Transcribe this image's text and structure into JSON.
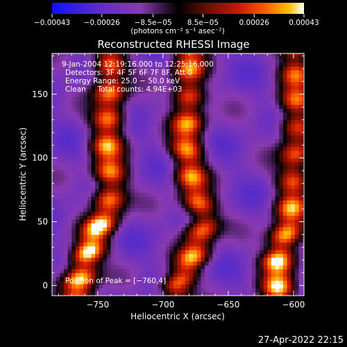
{
  "chart_data": {
    "type": "heatmap",
    "title": "Reconstructed RHESSI Image",
    "xlabel": "Heliocentric X (arcsec)",
    "ylabel": "Heliocentric Y (arcsec)",
    "xlim": [
      -785,
      -592
    ],
    "ylim": [
      -8,
      182
    ],
    "x_ticks": [
      -750,
      -700,
      -650,
      -600
    ],
    "y_ticks": [
      0,
      50,
      100,
      150
    ],
    "x_tick_labels": [
      "−750",
      "−700",
      "−650",
      "−600"
    ],
    "y_tick_labels": [
      "0",
      "50",
      "100",
      "150"
    ],
    "colorbar": {
      "range": [
        -0.00043,
        0.00043
      ],
      "ticks": [
        -0.00043,
        -0.00026,
        -8.5e-05,
        8.5e-05,
        0.00026,
        0.00043
      ],
      "tick_labels": [
        "−0.00043",
        "−0.00026",
        "−8.5e−05",
        "8.5e−05",
        "0.00026",
        "0.00043"
      ],
      "unit_label": "(photons cm⁻² s⁻¹ asec⁻²)",
      "colors": [
        "#1010ff",
        "#5a2cc8",
        "#8a3ab0",
        "#000000",
        "#6a1000",
        "#c81800",
        "#ff6000",
        "#ffc000",
        "#ffffff"
      ]
    },
    "annotations": [
      "9‑Jan‑2004 12:19:16.000 to 12:25:16.000",
      "Detectors: 3F 4F 5F 6F 7F 8F, Att 0",
      "Energy Range: 25.0 − 50.0 keV",
      "Clean     Total counts: 4.94E+03"
    ],
    "peak_label": "Position of Peak = [−760,4]",
    "bright_ridges": [
      {
        "x": [
          -765,
          -760,
          -752,
          -742,
          -740,
          -743,
          -741
        ],
        "y": [
          0,
          20,
          40,
          60,
          80,
          110,
          140
        ]
      },
      {
        "x": [
          -690,
          -678,
          -668,
          -678,
          -682,
          -680
        ],
        "y": [
          0,
          20,
          50,
          80,
          110,
          150
        ]
      },
      {
        "x": [
          -612,
          -603,
          -598
        ],
        "y": [
          20,
          50,
          100
        ]
      }
    ]
  },
  "footer": {
    "timestamp": "27‑Apr‑2022 22:15"
  }
}
